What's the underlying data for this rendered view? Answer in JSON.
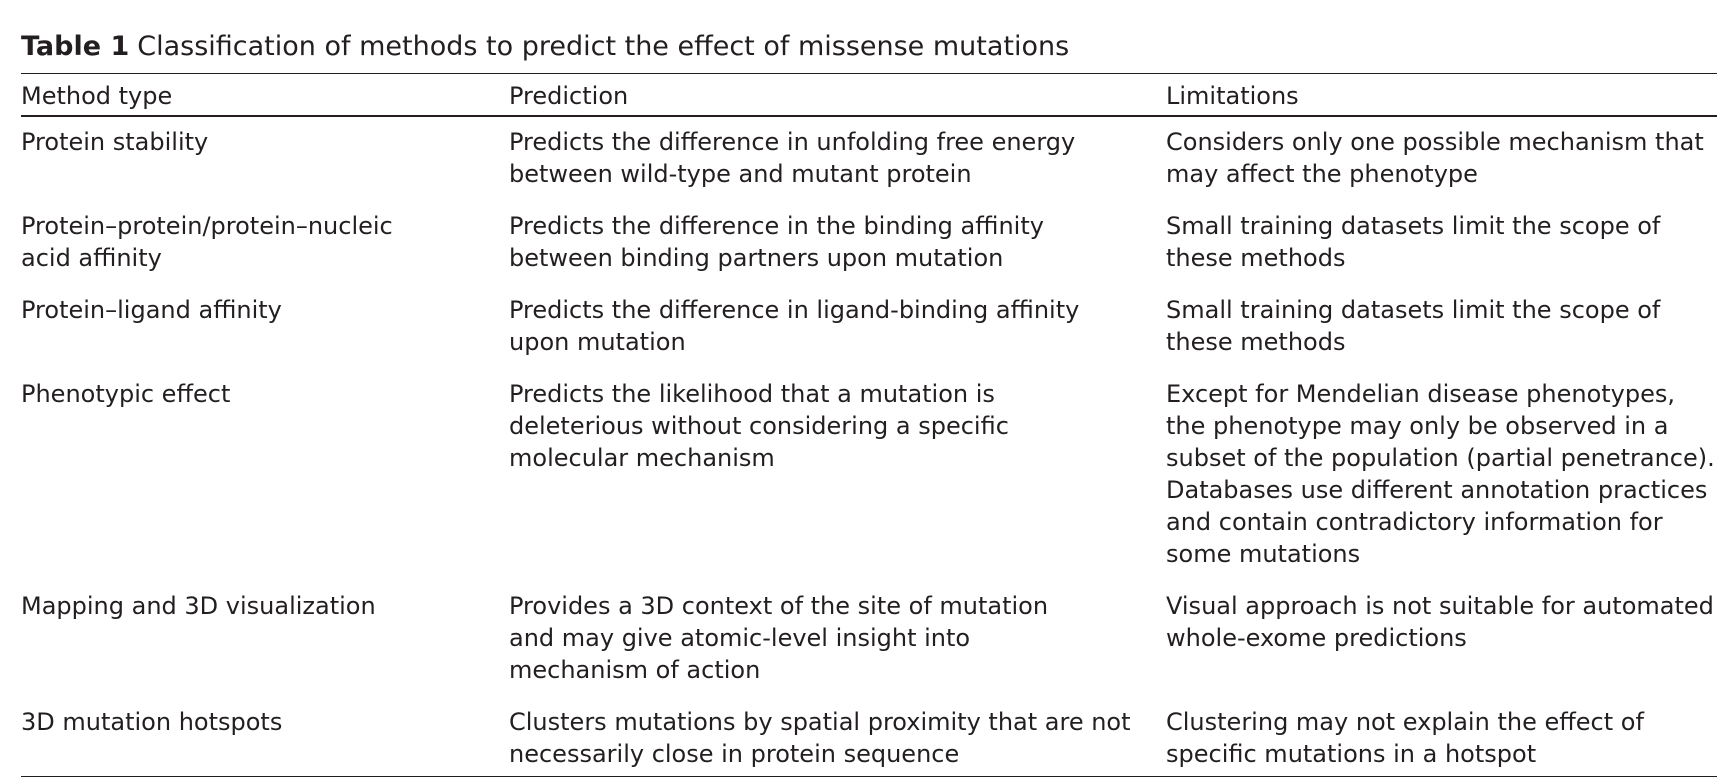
{
  "table": {
    "caption_label": "Table 1",
    "caption_title": "Classification of methods to predict the effect of missense mutations",
    "headers": [
      "Method type",
      "Prediction",
      "Limitations"
    ],
    "rows": [
      {
        "method": "Protein stability",
        "prediction": "Predicts the difference in unfolding free energy between wild-type and mutant protein",
        "limitations": "Considers only one possible mechanism that may affect the phenotype"
      },
      {
        "method": "Protein–protein/protein–nucleic acid affinity",
        "prediction": "Predicts the difference in the binding affinity between binding partners upon mutation",
        "limitations": "Small training datasets limit the scope of these methods"
      },
      {
        "method": "Protein–ligand affinity",
        "prediction": "Predicts the difference in ligand-binding affinity upon mutation",
        "limitations": "Small training datasets limit the scope of these methods"
      },
      {
        "method": "Phenotypic effect",
        "prediction": "Predicts the likelihood that a mutation is deleterious without considering a specific molecular mechanism",
        "limitations": "Except for Mendelian disease phenotypes, the phenotype may only be observed in a subset of the population (partial penetrance). Databases use different annotation practices and contain contradictory information for some mutations"
      },
      {
        "method": "Mapping and 3D visualization",
        "prediction": "Provides a 3D context of the site of mutation and may give atomic-level insight into mechanism of action",
        "limitations": "Visual approach is not suitable for automated whole-exome predictions"
      },
      {
        "method": "3D mutation hotspots",
        "prediction": "Clusters mutations by spatial proximity that are not necessarily close in protein sequence",
        "limitations": "Clustering may not explain the effect of specific mutations in a hotspot"
      }
    ]
  }
}
